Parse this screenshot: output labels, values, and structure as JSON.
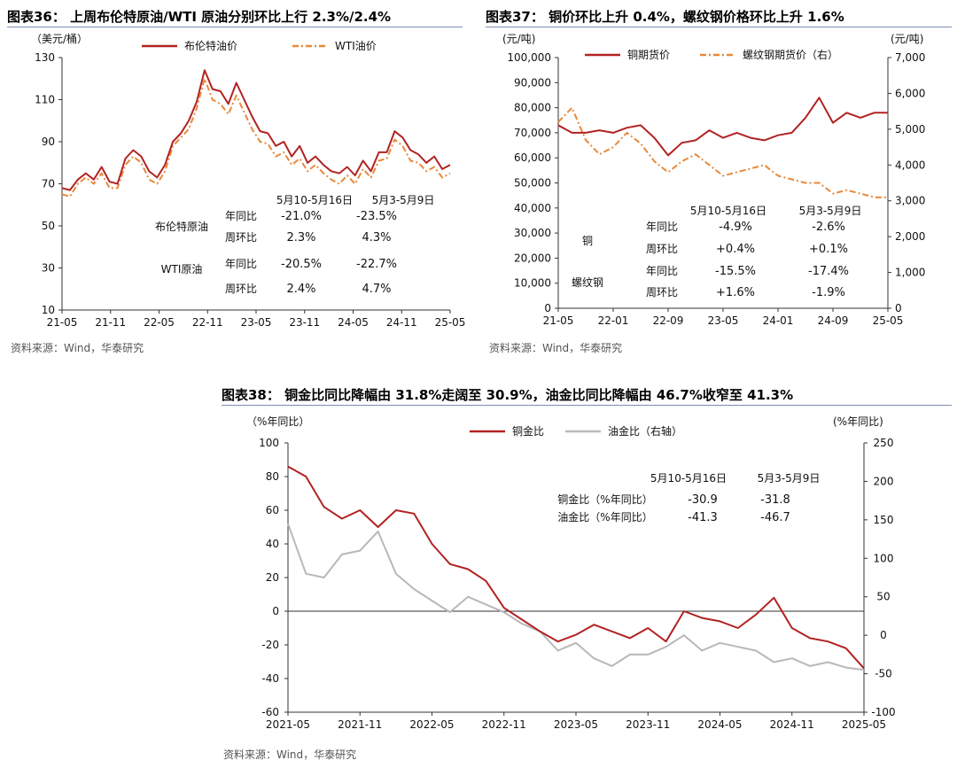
{
  "charts": [
    {
      "title": "图表36：  上周布伦特原油/WTI 原油分别环比上行 2.3%/2.4%",
      "source": "资料来源：Wind，华泰研究",
      "chart_data": {
        "type": "line",
        "y_unit": "（美元/桶）",
        "ylim": [
          10,
          130
        ],
        "y_ticks": [
          "10",
          "30",
          "50",
          "70",
          "90",
          "110",
          "130"
        ],
        "x_ticks": [
          "21-05",
          "21-11",
          "22-05",
          "22-11",
          "23-05",
          "23-11",
          "24-05",
          "24-11",
          "25-05"
        ],
        "series": [
          {
            "name": "布伦特油价",
            "color": "#b22222",
            "style": "solid",
            "x": [
              0,
              0.5,
              1,
              1.5,
              2,
              2.5,
              3,
              3.5,
              4,
              4.5,
              5,
              5.5,
              6,
              6.5,
              7,
              7.5,
              8,
              8.5,
              9,
              9.5,
              10,
              10.5,
              11,
              11.5,
              12,
              12.5,
              13,
              13.5,
              14,
              14.5,
              15,
              15.5,
              16,
              16.5,
              17,
              17.5,
              18,
              18.5,
              19,
              19.5,
              20,
              20.5,
              21,
              21.5,
              22,
              22.5,
              23,
              23.5,
              24,
              24.5
            ],
            "values": [
              68,
              67,
              72,
              75,
              72,
              78,
              71,
              70,
              82,
              86,
              83,
              76,
              73,
              79,
              90,
              94,
              100,
              109,
              124,
              115,
              114,
              108,
              118,
              110,
              102,
              95,
              94,
              88,
              90,
              83,
              88,
              80,
              83,
              79,
              76,
              75,
              78,
              74,
              81,
              76,
              85,
              85,
              95,
              92,
              86,
              84,
              80,
              83,
              77,
              79
            ]
          },
          {
            "name": "WTI油价",
            "color": "#e8893a",
            "style": "dashdot",
            "x": [
              0,
              0.5,
              1,
              1.5,
              2,
              2.5,
              3,
              3.5,
              4,
              4.5,
              5,
              5.5,
              6,
              6.5,
              7,
              7.5,
              8,
              8.5,
              9,
              9.5,
              10,
              10.5,
              11,
              11.5,
              12,
              12.5,
              13,
              13.5,
              14,
              14.5,
              15,
              15.5,
              16,
              16.5,
              17,
              17.5,
              18,
              18.5,
              19,
              19.5,
              20,
              20.5,
              21,
              21.5,
              22,
              22.5,
              23,
              23.5,
              24,
              24.5
            ],
            "values": [
              65,
              64,
              70,
              73,
              70,
              75,
              68,
              68,
              79,
              83,
              80,
              72,
              70,
              76,
              88,
              92,
              96,
              106,
              120,
              110,
              108,
              103,
              112,
              104,
              96,
              90,
              89,
              83,
              85,
              79,
              82,
              76,
              79,
              75,
              72,
              70,
              74,
              70,
              77,
              73,
              81,
              82,
              91,
              88,
              81,
              80,
              76,
              78,
              73,
              75
            ]
          }
        ],
        "legend": [
          "布伦特油价",
          "WTI油价"
        ]
      },
      "table": {
        "headers": [
          "5月10-5月16日",
          "5月3-5月9日"
        ],
        "rows": [
          {
            "group": "布伦特原油",
            "label": "年同比",
            "v1": "-21.0%",
            "v2": "-23.5%"
          },
          {
            "group": "",
            "label": "周环比",
            "v1": "2.3%",
            "v2": "4.3%"
          },
          {
            "group": "WTI原油",
            "label": "年同比",
            "v1": "-20.5%",
            "v2": "-22.7%"
          },
          {
            "group": "",
            "label": "周环比",
            "v1": "2.4%",
            "v2": "4.7%"
          }
        ]
      }
    },
    {
      "title": "图表37：  铜价环比上升 0.4%，螺纹钢价格环比上升 1.6%",
      "source": "资料来源：Wind，华泰研究",
      "chart_data": {
        "type": "line",
        "y_unit_left": "(元/吨)",
        "y_unit_right": "(元/吨)",
        "ylim_left": [
          0,
          100000
        ],
        "ylim_right": [
          0,
          7000
        ],
        "y_ticks_left": [
          "0",
          "10,000",
          "20,000",
          "30,000",
          "40,000",
          "50,000",
          "60,000",
          "70,000",
          "80,000",
          "90,000",
          "100,000"
        ],
        "y_ticks_right": [
          "0",
          "1,000",
          "2,000",
          "3,000",
          "4,000",
          "5,000",
          "6,000",
          "7,000"
        ],
        "x_ticks": [
          "21-05",
          "22-01",
          "22-09",
          "23-05",
          "24-01",
          "24-09",
          "25-05"
        ],
        "series": [
          {
            "name": "铜期货价",
            "color": "#b22222",
            "style": "solid",
            "axis": "left",
            "x": [
              0,
              0.5,
              1,
              1.5,
              2,
              2.5,
              3,
              3.5,
              4,
              4.5,
              5,
              5.5,
              6,
              6.5,
              7,
              7.5,
              8,
              8.5,
              9,
              9.5,
              10,
              10.5,
              11,
              11.5,
              12
            ],
            "values": [
              73000,
              70000,
              70000,
              71000,
              70000,
              72000,
              73000,
              68000,
              61000,
              66000,
              67000,
              71000,
              68000,
              70000,
              68000,
              67000,
              69000,
              70000,
              76000,
              84000,
              74000,
              78000,
              76000,
              78000,
              78000
            ]
          },
          {
            "name": "螺纹钢期货价（右）",
            "color": "#e8893a",
            "style": "dashdot",
            "axis": "right",
            "x": [
              0,
              0.5,
              1,
              1.5,
              2,
              2.5,
              3,
              3.5,
              4,
              4.5,
              5,
              5.5,
              6,
              6.5,
              7,
              7.5,
              8,
              8.5,
              9,
              9.5,
              10,
              10.5,
              11,
              11.5,
              12
            ],
            "values": [
              5200,
              5600,
              4700,
              4300,
              4500,
              4900,
              4600,
              4100,
              3800,
              4100,
              4300,
              4000,
              3700,
              3800,
              3900,
              4000,
              3700,
              3600,
              3500,
              3500,
              3200,
              3300,
              3200,
              3100,
              3100
            ]
          }
        ],
        "legend": [
          "铜期货价",
          "螺纹钢期货价（右）"
        ]
      },
      "table": {
        "headers": [
          "5月10-5月16日",
          "5月3-5月9日"
        ],
        "rows": [
          {
            "group": "",
            "label": "年同比",
            "v1": "-4.9%",
            "v2": "-2.6%"
          },
          {
            "group": "铜",
            "label": "周环比",
            "v1": "+0.4%",
            "v2": "+0.1%"
          },
          {
            "group": "",
            "label": "年同比",
            "v1": "-15.5%",
            "v2": "-17.4%"
          },
          {
            "group": "螺纹钢",
            "label": "周环比",
            "v1": "+1.6%",
            "v2": "-1.9%"
          }
        ]
      }
    },
    {
      "title": "图表38：  铜金比同比降幅由 31.8%走阔至 30.9%，油金比同比降幅由 46.7%收窄至 41.3%",
      "source": "资料来源：Wind，华泰研究",
      "chart_data": {
        "type": "line",
        "y_unit_left": "（%年同比）",
        "y_unit_right": "(%年同比)",
        "ylim_left": [
          -60,
          100
        ],
        "ylim_right": [
          -100,
          250
        ],
        "y_ticks_left": [
          "-60",
          "-40",
          "-20",
          "0",
          "20",
          "40",
          "60",
          "80",
          "100"
        ],
        "y_ticks_right": [
          "-100",
          "-50",
          "0",
          "50",
          "100",
          "150",
          "200",
          "250"
        ],
        "x_ticks": [
          "2021-05",
          "2021-11",
          "2022-05",
          "2022-11",
          "2023-05",
          "2023-11",
          "2024-05",
          "2024-11",
          "2025-05"
        ],
        "series": [
          {
            "name": "铜金比",
            "color": "#b22222",
            "style": "solid",
            "axis": "left",
            "x": [
              0,
              0.25,
              0.5,
              0.75,
              1,
              1.25,
              1.5,
              1.75,
              2,
              2.25,
              2.5,
              2.75,
              3,
              3.25,
              3.5,
              3.75,
              4,
              4.25,
              4.5,
              4.75,
              5,
              5.25,
              5.5,
              5.75,
              6,
              6.25,
              6.5,
              6.75,
              7,
              7.25,
              7.5,
              7.75,
              8
            ],
            "values": [
              86,
              80,
              62,
              55,
              60,
              50,
              60,
              58,
              40,
              28,
              25,
              18,
              2,
              -5,
              -12,
              -18,
              -14,
              -8,
              -12,
              -16,
              -10,
              -18,
              0,
              -4,
              -6,
              -10,
              -2,
              8,
              -10,
              -16,
              -18,
              -22,
              -34
            ]
          },
          {
            "name": "油金比（右轴）",
            "color": "#b8b8b8",
            "style": "solid",
            "axis": "right",
            "x": [
              0,
              0.25,
              0.5,
              0.75,
              1,
              1.25,
              1.5,
              1.75,
              2,
              2.25,
              2.5,
              2.75,
              3,
              3.25,
              3.5,
              3.75,
              4,
              4.25,
              4.5,
              4.75,
              5,
              5.25,
              5.5,
              5.75,
              6,
              6.25,
              6.5,
              6.75,
              7,
              7.25,
              7.5,
              7.75,
              8
            ],
            "values": [
              145,
              80,
              75,
              105,
              110,
              135,
              80,
              60,
              45,
              30,
              50,
              40,
              30,
              15,
              5,
              -20,
              -10,
              -30,
              -40,
              -25,
              -25,
              -15,
              0,
              -20,
              -10,
              -15,
              -20,
              -35,
              -30,
              -40,
              -35,
              -42,
              -45
            ]
          }
        ],
        "legend": [
          "铜金比",
          "油金比（右轴）"
        ]
      },
      "table": {
        "headers": [
          "5月10-5月16日",
          "5月3-5月9日"
        ],
        "rows": [
          {
            "group": "",
            "label": "铜金比（%年同比）",
            "v1": "-30.9",
            "v2": "-31.8"
          },
          {
            "group": "",
            "label": "油金比（%年同比）",
            "v1": "-41.3",
            "v2": "-46.7"
          }
        ]
      }
    }
  ]
}
